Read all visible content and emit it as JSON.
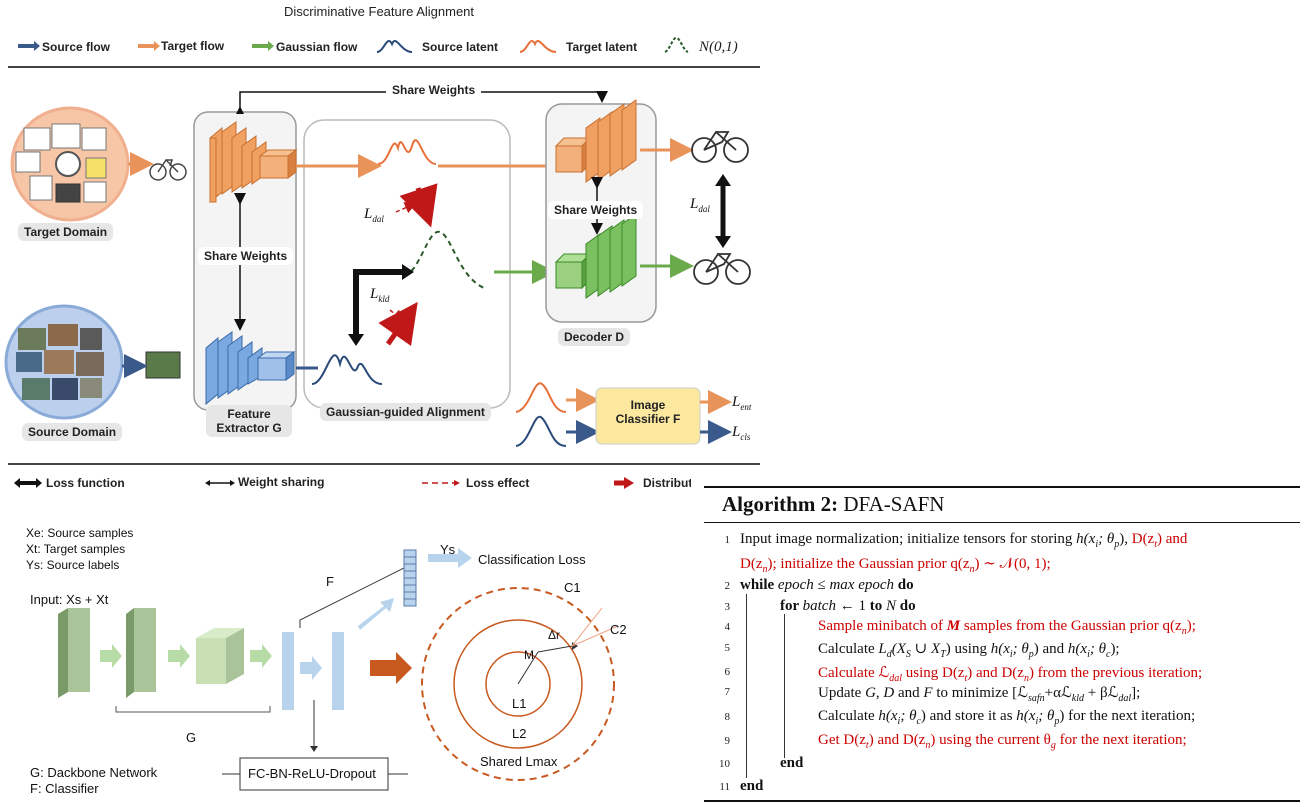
{
  "top": {
    "title": "Discriminative Feature Alignment",
    "legend": [
      {
        "label": "Source flow",
        "color": "#3a5a8c"
      },
      {
        "label": "Target flow",
        "color": "#e8935a"
      },
      {
        "label": "Gaussian flow",
        "color": "#6aaa4a"
      },
      {
        "label": "Source latent",
        "color": "#2a4a7a"
      },
      {
        "label": "Target latent",
        "color": "#e8703a"
      },
      {
        "label": "N(0,1)",
        "color": "#2a5a2a"
      }
    ],
    "share_weights_top": "Share Weights",
    "share_weights_mid": "Share Weights",
    "share_weights_right": "Share Weights",
    "target_domain": "Target Domain",
    "source_domain": "Source Domain",
    "feature_extractor": "Feature Extractor G",
    "gaussian_alignment": "Gaussian-guided Alignment",
    "decoder": "Decoder D",
    "classifier": "Image Classifier F",
    "l_dal_1": "L",
    "l_dal_1_sub": "dal",
    "l_kld": "L",
    "l_kld_sub": "kld",
    "l_dal_2": "L",
    "l_dal_2_sub": "dal",
    "l_ent": "L",
    "l_ent_sub": "ent",
    "l_cls": "L",
    "l_cls_sub": "cls",
    "bottom_legend": [
      {
        "label": "Loss function"
      },
      {
        "label": "Weight sharing"
      },
      {
        "label": "Loss effect"
      },
      {
        "label": "Distribut"
      }
    ]
  },
  "bottom_left": {
    "xe": "Xe: Source samples",
    "xt": "Xt: Target samples",
    "ys": "Ys: Source labels",
    "input": "Input: Xs + Xt",
    "g_label": "G",
    "f_label": "F",
    "ys_arrow": "Ys",
    "classification_loss": "Classification Loss",
    "fc": "FC-BN-ReLU-Dropout",
    "g_def": "G: Dackbone Network",
    "f_def": "F: Classifier",
    "c1": "C1",
    "c2": "C2",
    "delta_r": "Δr",
    "m": "M",
    "l1": "L1",
    "l2": "L2",
    "shared": "Shared Lmax"
  },
  "algorithm": {
    "heading_bold": "Algorithm 2:",
    "heading_name": " DFA-SAFN",
    "lines": [
      {
        "n": "1",
        "segments": [
          [
            "Input image normalization; initialize tensors for storing ",
            "k"
          ],
          [
            "h(x",
            "ki"
          ],
          [
            "i",
            "sub"
          ],
          [
            "; θ",
            "ki"
          ],
          [
            "p",
            "sub"
          ],
          [
            "), ",
            "k"
          ],
          [
            "D(z",
            "r"
          ],
          [
            "t",
            "rsub"
          ],
          [
            ") and",
            "r"
          ]
        ]
      },
      {
        "n": "",
        "segments": [
          [
            "D(z",
            "r"
          ],
          [
            "n",
            "rsub"
          ],
          [
            "); initialize the Gaussian prior ",
            "r"
          ],
          [
            "q(z",
            "r"
          ],
          [
            "n",
            "rsub"
          ],
          [
            ") ∼ 𝒩(0, 1);",
            "r"
          ]
        ]
      },
      {
        "n": "2",
        "segments": [
          [
            "while ",
            "b"
          ],
          [
            "epoch ≤ max epoch",
            "i"
          ],
          [
            " do",
            "b"
          ]
        ]
      },
      {
        "n": "3",
        "segments": [
          [
            "for ",
            "b"
          ],
          [
            "batch",
            "i"
          ],
          [
            " ← 1 ",
            "k"
          ],
          [
            "to",
            "b"
          ],
          [
            " N ",
            "i"
          ],
          [
            "do",
            "b"
          ]
        ]
      },
      {
        "n": "4",
        "segments": [
          [
            "Sample minibatch of ",
            "r"
          ],
          [
            "M",
            "rb"
          ],
          [
            " samples from the Gaussian prior ",
            "r"
          ],
          [
            "q(z",
            "r"
          ],
          [
            "n",
            "rsub"
          ],
          [
            ");",
            "r"
          ]
        ]
      },
      {
        "n": "5",
        "segments": [
          [
            "Calculate ",
            "k"
          ],
          [
            "L",
            "ki"
          ],
          [
            "d",
            "sub"
          ],
          [
            "(X",
            "ki"
          ],
          [
            "S",
            "sub"
          ],
          [
            " ∪ X",
            "ki"
          ],
          [
            "T",
            "sub"
          ],
          [
            ") using ",
            "k"
          ],
          [
            "h(x",
            "ki"
          ],
          [
            "i",
            "sub"
          ],
          [
            "; θ",
            "ki"
          ],
          [
            "p",
            "sub"
          ],
          [
            ") and ",
            "k"
          ],
          [
            "h(x",
            "ki"
          ],
          [
            "i",
            "sub"
          ],
          [
            "; θ",
            "ki"
          ],
          [
            "c",
            "sub"
          ],
          [
            ");",
            "k"
          ]
        ]
      },
      {
        "n": "6",
        "segments": [
          [
            "Calculate ",
            "r"
          ],
          [
            "ℒ",
            "r"
          ],
          [
            "dal",
            "rsub"
          ],
          [
            " using ",
            "r"
          ],
          [
            "D(z",
            "r"
          ],
          [
            "t",
            "rsub"
          ],
          [
            ") and ",
            "r"
          ],
          [
            "D(z",
            "r"
          ],
          [
            "n",
            "rsub"
          ],
          [
            ") from the previous iteration;",
            "r"
          ]
        ]
      },
      {
        "n": "7",
        "segments": [
          [
            "Update ",
            "k"
          ],
          [
            "G, D",
            "ki"
          ],
          [
            " and ",
            "k"
          ],
          [
            "F",
            "ki"
          ],
          [
            " to minimize [ℒ",
            "k"
          ],
          [
            "safn",
            "sub"
          ],
          [
            "+αℒ",
            "k"
          ],
          [
            "kld",
            "sub"
          ],
          [
            " + βℒ",
            "k"
          ],
          [
            "dal",
            "sub"
          ],
          [
            "];",
            "k"
          ]
        ]
      },
      {
        "n": "8",
        "segments": [
          [
            "Calculate ",
            "k"
          ],
          [
            "h(x",
            "ki"
          ],
          [
            "i",
            "sub"
          ],
          [
            "; θ",
            "ki"
          ],
          [
            "c",
            "sub"
          ],
          [
            ") and store it as ",
            "k"
          ],
          [
            "h(x",
            "ki"
          ],
          [
            "i",
            "sub"
          ],
          [
            "; θ",
            "ki"
          ],
          [
            "p",
            "sub"
          ],
          [
            ") for the next iteration;",
            "k"
          ]
        ]
      },
      {
        "n": "9",
        "segments": [
          [
            "Get ",
            "r"
          ],
          [
            "D(z",
            "r"
          ],
          [
            "t",
            "rsub"
          ],
          [
            ") and ",
            "r"
          ],
          [
            "D(z",
            "r"
          ],
          [
            "n",
            "rsub"
          ],
          [
            ") using the current ",
            "r"
          ],
          [
            "θ",
            "r"
          ],
          [
            "g",
            "rsub"
          ],
          [
            " for the next iteration;",
            "r"
          ]
        ]
      },
      {
        "n": "10",
        "segments": [
          [
            "end",
            "b"
          ]
        ]
      },
      {
        "n": "11",
        "segments": [
          [
            "end",
            "b"
          ]
        ]
      }
    ]
  }
}
